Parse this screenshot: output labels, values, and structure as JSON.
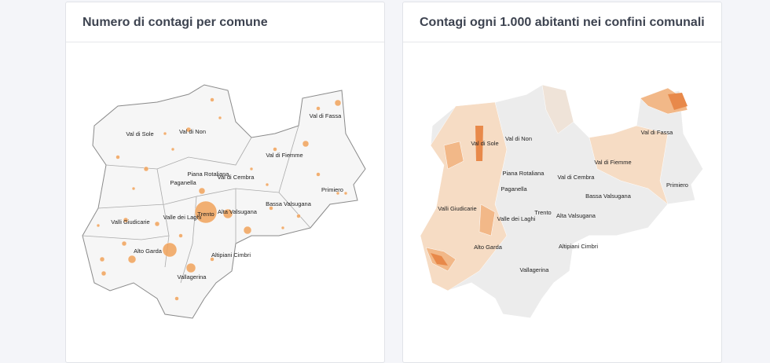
{
  "panels": [
    {
      "title": "Numero di contagi per comune",
      "labels": [
        "Val di Sole",
        "Val di Non",
        "Val di Fassa",
        "Val di Fiemme",
        "Piana Rotaliana",
        "Val di Cembra",
        "Paganella",
        "Primiero",
        "Valle dei Laghi",
        "Trento",
        "Alta Valsugana",
        "Bassa Valsugana",
        "Valli Giudicarie",
        "Alto Garda",
        "Altipiani Cimbri",
        "Vallagerina"
      ]
    },
    {
      "title": "Contagi ogni 1.000 abitanti nei confini comunali",
      "labels": [
        "Val di Sole",
        "Val di Non",
        "Val di Fassa",
        "Val di Fiemme",
        "Piana Rotaliana",
        "Val di Cembra",
        "Paganella",
        "Primiero",
        "Valle dei Laghi",
        "Trento",
        "Alta Valsugana",
        "Bassa Valsugana",
        "Valli Giudicarie",
        "Alto Garda",
        "Altipiani Cimbri",
        "Vallagerina"
      ]
    }
  ]
}
